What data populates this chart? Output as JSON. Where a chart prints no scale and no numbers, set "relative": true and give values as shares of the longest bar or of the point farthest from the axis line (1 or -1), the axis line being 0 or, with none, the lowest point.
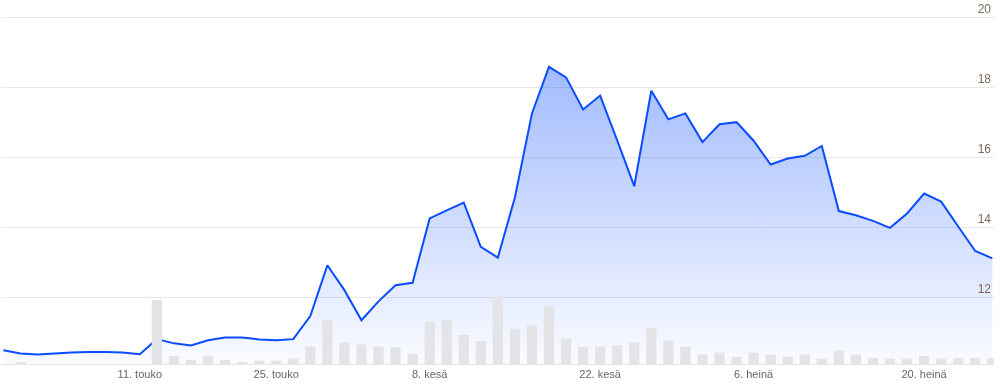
{
  "chart_data": [
    {
      "type": "area",
      "categories": [
        null,
        null,
        null,
        null,
        null,
        null,
        null,
        null,
        "11. touko",
        null,
        null,
        null,
        null,
        null,
        null,
        null,
        "25. touko",
        null,
        null,
        null,
        null,
        null,
        null,
        null,
        null,
        "8. kesä",
        null,
        null,
        null,
        null,
        null,
        null,
        null,
        null,
        null,
        "22. kesä",
        null,
        null,
        null,
        null,
        null,
        null,
        null,
        null,
        "6. heinä",
        null,
        null,
        null,
        null,
        null,
        null,
        null,
        null,
        null,
        "20. heinä",
        null,
        null,
        null,
        null
      ],
      "series": [
        {
          "color": "#0a4cff",
          "values": [
            10.49,
            10.4,
            10.37,
            10.4,
            10.43,
            10.44,
            10.44,
            10.43,
            10.38,
            10.81,
            10.69,
            10.63,
            10.78,
            10.86,
            10.86,
            10.8,
            10.78,
            10.81,
            11.47,
            12.92,
            12.21,
            11.35,
            11.89,
            12.35,
            12.42,
            14.26,
            14.49,
            14.71,
            13.45,
            13.14,
            14.86,
            17.26,
            18.59,
            18.29,
            17.37,
            17.77,
            16.49,
            15.18,
            17.91,
            17.09,
            17.26,
            16.44,
            16.95,
            17.01,
            16.48,
            15.8,
            15.97,
            16.05,
            16.33,
            14.47,
            14.35,
            14.19,
            13.99,
            14.4,
            14.97,
            14.74,
            14.03,
            13.33,
            13.12
          ]
        }
      ],
      "ylim": [
        10.1,
        20.5
      ],
      "yticks": [
        12,
        14,
        16,
        18,
        20
      ],
      "grid": "y",
      "marker": "none",
      "line_style": "solid"
    },
    {
      "type": "bar",
      "relative": true,
      "color": "#e4e4e8",
      "categories": [
        null,
        null,
        null,
        null,
        null,
        null,
        null,
        null,
        null,
        null,
        null,
        null,
        null,
        null,
        null,
        null,
        null,
        null,
        null,
        null,
        null,
        null,
        null,
        null,
        null,
        null,
        null,
        null,
        null,
        null,
        null,
        null,
        null,
        null,
        null,
        null,
        null,
        null,
        null,
        null,
        null,
        null,
        null,
        null,
        null,
        null,
        null,
        null,
        null,
        null,
        null,
        null,
        null,
        null,
        null,
        null,
        null,
        null,
        null
      ],
      "values": [
        0,
        0.02,
        0,
        0,
        0,
        0,
        0,
        0,
        0,
        0.95,
        0.12,
        0.06,
        0.12,
        0.06,
        0.03,
        0.05,
        0.05,
        0.08,
        0.26,
        0.66,
        0.32,
        0.29,
        0.26,
        0.25,
        0.15,
        0.63,
        0.66,
        0.43,
        0.34,
        1,
        0.52,
        0.58,
        0.86,
        0.38,
        0.25,
        0.26,
        0.28,
        0.32,
        0.54,
        0.35,
        0.26,
        0.14,
        0.17,
        0.11,
        0.17,
        0.14,
        0.11,
        0.14,
        0.08,
        0.2,
        0.14,
        0.09,
        0.08,
        0.08,
        0.12,
        0.08,
        0.09,
        0.09,
        0.09
      ]
    }
  ]
}
